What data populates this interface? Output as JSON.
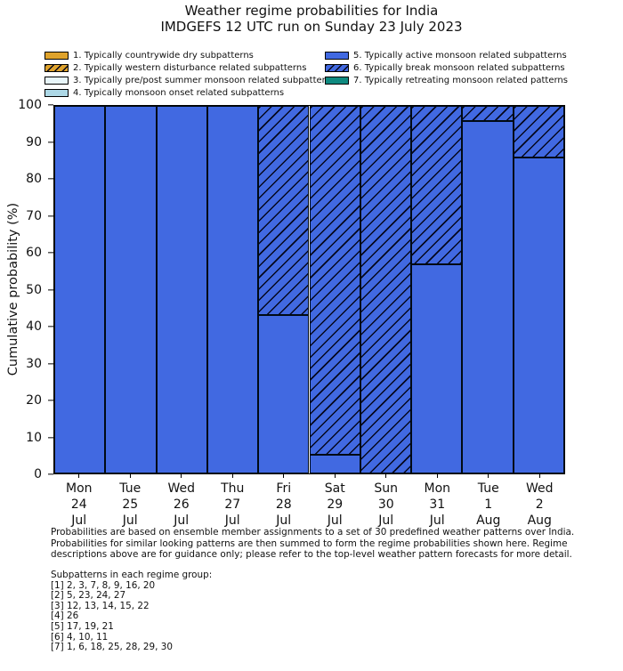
{
  "title": {
    "line1": "Weather regime probabilities for India",
    "line2": "IMDGEFS 12 UTC run on Sunday 23 July 2023"
  },
  "legend": {
    "items": [
      {
        "label": "1. Typically countrywide dry subpatterns",
        "color": "#DFA32C",
        "hatched": false,
        "column": 0
      },
      {
        "label": "2. Typically western disturbance related subpatterns",
        "color": "#DFA32C",
        "hatched": true,
        "column": 0
      },
      {
        "label": "3. Typically pre/post summer monsoon related subpatterns",
        "color": "#E8F6FA",
        "hatched": false,
        "column": 0
      },
      {
        "label": "4. Typically monsoon onset related subpatterns",
        "color": "#ADD8E6",
        "hatched": false,
        "column": 0
      },
      {
        "label": "5. Typically active monsoon related subpatterns",
        "color": "#4169E1",
        "hatched": false,
        "column": 1
      },
      {
        "label": "6. Typically break monsoon related subpatterns",
        "color": "#4169E1",
        "hatched": true,
        "column": 1
      },
      {
        "label": "7. Typically retreating monsoon related patterns",
        "color": "#0F8A80",
        "hatched": false,
        "column": 1
      }
    ]
  },
  "chart_data": {
    "type": "bar",
    "stacked": true,
    "title": "Weather regime probabilities for India — IMDGEFS 12 UTC run on Sunday 23 July 2023",
    "categories": [
      [
        "Mon",
        "24",
        "Jul"
      ],
      [
        "Tue",
        "25",
        "Jul"
      ],
      [
        "Wed",
        "26",
        "Jul"
      ],
      [
        "Thu",
        "27",
        "Jul"
      ],
      [
        "Fri",
        "28",
        "Jul"
      ],
      [
        "Sat",
        "29",
        "Jul"
      ],
      [
        "Sun",
        "30",
        "Jul"
      ],
      [
        "Mon",
        "31",
        "Jul"
      ],
      [
        "Tue",
        "1",
        "Aug"
      ],
      [
        "Wed",
        "2",
        "Aug"
      ]
    ],
    "series": [
      {
        "name": "5. Typically active monsoon related subpatterns",
        "color": "#4169E1",
        "hatched": false,
        "values": [
          100,
          100,
          100,
          100,
          43,
          5,
          0,
          57,
          96,
          86
        ]
      },
      {
        "name": "6. Typically break monsoon related subpatterns",
        "color": "#4169E1",
        "hatched": true,
        "values": [
          0,
          0,
          0,
          0,
          57,
          95,
          100,
          43,
          4,
          14
        ]
      }
    ],
    "other_regimes_values": 0,
    "xlabel": "",
    "ylabel": "Cumulative probability (%)",
    "ylim": [
      0,
      100
    ],
    "yticks": [
      0,
      10,
      20,
      30,
      40,
      50,
      60,
      70,
      80,
      90,
      100
    ],
    "grid": false,
    "legend_position": "top"
  },
  "footnote": {
    "lines": [
      "Probabilities are based on ensemble member assignments to a set of 30 predefined weather patterns over India.",
      "Probabilities for similar looking patterns are then summed to form the regime probabilities shown here. Regime",
      "descriptions above are for guidance only; please refer to the top-level weather pattern forecasts for more detail."
    ]
  },
  "subpatterns": {
    "heading": "Subpatterns in each regime group:",
    "lines": [
      "[1] 2, 3, 7, 8, 9, 16, 20",
      "[2] 5, 23, 24, 27",
      "[3] 12, 13, 14, 15, 22",
      "[4] 26",
      "[5] 17, 19, 21",
      "[6] 4, 10, 11",
      "[7] 1, 6, 18, 25, 28, 29, 30"
    ]
  }
}
